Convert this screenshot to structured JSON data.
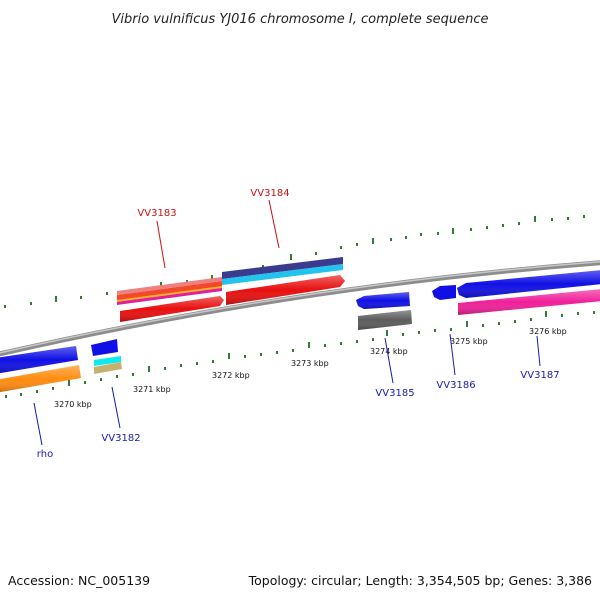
{
  "title": "Vibrio vulnificus YJ016 chromosome I, complete sequence",
  "footer": {
    "accession": "Accession: NC_005139",
    "summary": "Topology: circular; Length: 3,354,505 bp; Genes: 3,386"
  },
  "scale_labels": [
    "3270 kbp",
    "3271 kbp",
    "3272 kbp",
    "3273 kbp",
    "3274 kbp",
    "3275 kbp",
    "3276 kbp"
  ],
  "colors": {
    "backbone": "#8c8c8c",
    "tick": "#2f7d2f",
    "label_forward": "#cc1111",
    "label_reverse": "#1a1aaa"
  },
  "gene_labels": [
    {
      "name": "VV3183",
      "strand": "forward"
    },
    {
      "name": "VV3184",
      "strand": "forward"
    },
    {
      "name": "rho",
      "strand": "reverse"
    },
    {
      "name": "VV3182",
      "strand": "reverse"
    },
    {
      "name": "VV3185",
      "strand": "reverse"
    },
    {
      "name": "VV3186",
      "strand": "reverse"
    },
    {
      "name": "VV3187",
      "strand": "reverse"
    }
  ]
}
